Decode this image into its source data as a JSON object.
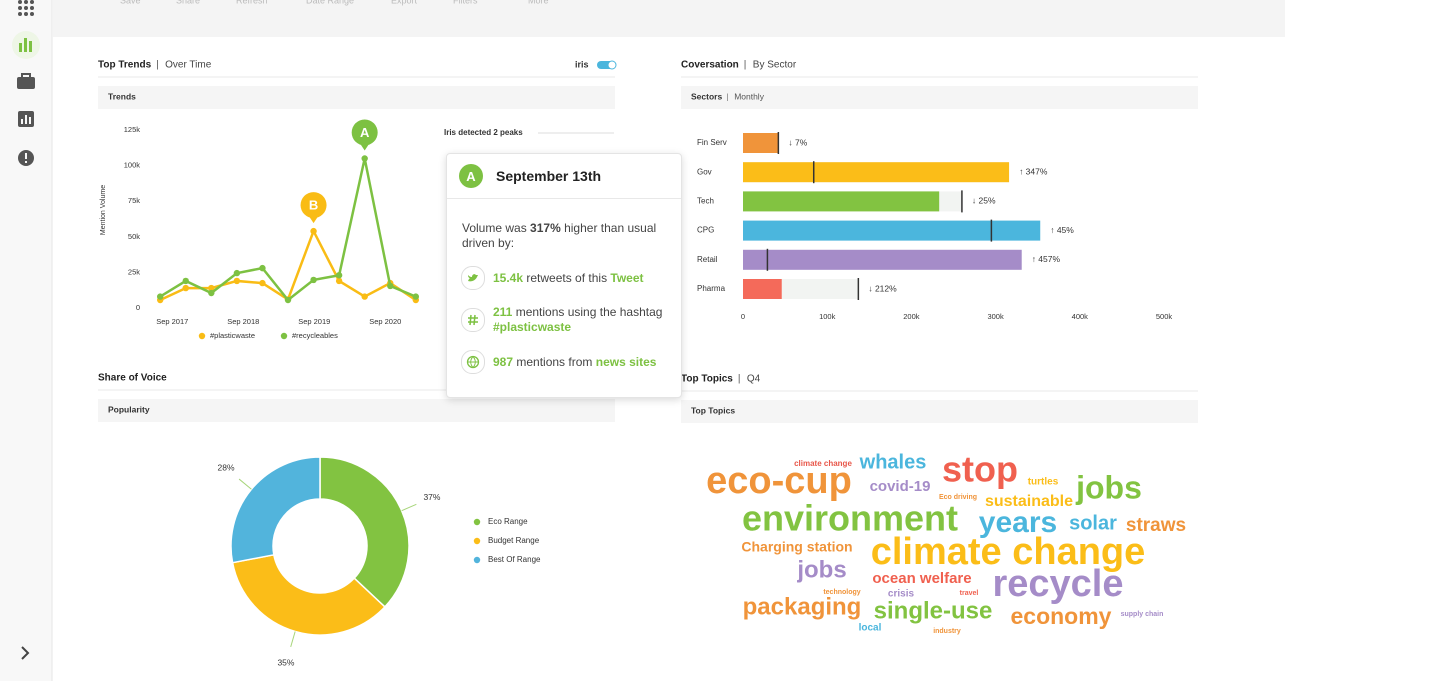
{
  "toolbar": {
    "items": [
      "Save",
      "Share",
      "Refresh",
      "Date Range",
      "Export",
      "Filters",
      "More"
    ]
  },
  "chart_data": [
    {
      "type": "line",
      "title": "Top Trends",
      "subtitle": "Over Time",
      "panel_header": "Trends",
      "toggle_label": "iris",
      "y_label": "Mention Volume",
      "x": [
        2017.5,
        2017.86,
        2018.22,
        2018.58,
        2018.94,
        2019.3,
        2019.66,
        2020.02,
        2020.38,
        2020.74,
        2021.1
      ],
      "xlim": [
        2017.3,
        2021.3
      ],
      "xticks": [
        {
          "value": 2017.67,
          "label": "Sep 2017"
        },
        {
          "value": 2018.67,
          "label": "Sep 2018"
        },
        {
          "value": 2019.67,
          "label": "Sep 2019"
        },
        {
          "value": 2020.67,
          "label": "Sep 2020"
        }
      ],
      "ylim": [
        0,
        125000
      ],
      "yticks": [
        0,
        {
          "value": 25000,
          "label": "25k"
        },
        {
          "value": 50000,
          "label": "50k"
        },
        {
          "value": 75000,
          "label": "75k"
        },
        {
          "value": 100000,
          "label": "100k"
        },
        {
          "value": 125000,
          "label": "125k"
        }
      ],
      "series": [
        {
          "name": "#plasticwaste",
          "color": "#f9bc15",
          "values": [
            5600,
            14000,
            14000,
            19000,
            17500,
            6000,
            54000,
            19000,
            8000,
            17500,
            5600
          ]
        },
        {
          "name": "#recycleables",
          "color": "#7dc142",
          "values": [
            8000,
            19000,
            10500,
            24500,
            28000,
            5600,
            19700,
            23000,
            105000,
            15500,
            8000
          ]
        }
      ],
      "annotations": [
        {
          "text": "A",
          "x": 2020.38,
          "y": 105000,
          "color": "#7dc142"
        },
        {
          "text": "B",
          "x": 2019.66,
          "y": 54000,
          "color": "#f9bc15"
        }
      ]
    },
    {
      "type": "bar",
      "orientation": "horizontal",
      "title": "Coversation",
      "subtitle": "By Sector",
      "panel_header": "Sectors",
      "panel_subheader": "Monthly",
      "categories": [
        "Fin Serv",
        "Gov",
        "Tech",
        "CPG",
        "Retail",
        "Pharma"
      ],
      "values": [
        42000,
        316000,
        233000,
        353000,
        331000,
        46000
      ],
      "benchmark": [
        42000,
        84000,
        260000,
        295000,
        29000,
        137000
      ],
      "change_labels": [
        "↓ 7%",
        "↑ 347%",
        "↓ 25%",
        "↑ 45%",
        "↑ 457%",
        "↓ 212%"
      ],
      "colors": [
        "#f0943a",
        "#fbbd18",
        "#82c341",
        "#4bb6dd",
        "#a58cc8",
        "#f46a5a"
      ],
      "track_color": "#f2f4f2",
      "xlim": [
        0,
        500000
      ],
      "xticks": [
        0,
        {
          "value": 100000,
          "label": "100k"
        },
        {
          "value": 200000,
          "label": "200k"
        },
        {
          "value": 300000,
          "label": "300k"
        },
        {
          "value": 400000,
          "label": "400k"
        },
        {
          "value": 500000,
          "label": "500k"
        }
      ]
    },
    {
      "type": "pie",
      "title": "Share of Voice",
      "panel_header": "Popularity",
      "categories": [
        "Eco Range",
        "Budget Range",
        "Best Of Range"
      ],
      "values": [
        37,
        35,
        28
      ],
      "value_labels": [
        "37%",
        "35%",
        "28%"
      ],
      "colors": [
        "#82c341",
        "#fbbd18",
        "#52b4dc"
      ]
    }
  ],
  "popup": {
    "heading": "Iris detected 2 peaks",
    "badge": "A",
    "date": "September 13th",
    "summary": [
      "Volume was ",
      "317%",
      " higher than usual driven by:"
    ],
    "items": [
      [
        "15.4k",
        " retweets of this ",
        "Tweet"
      ],
      [
        "211",
        " mentions using the hashtag ",
        "#plasticwaste"
      ],
      [
        "987",
        " mentions from ",
        "news sites"
      ]
    ]
  },
  "word_cloud": {
    "title": "Top Topics",
    "subtitle": "Q4",
    "panel_header": "Top Topics",
    "words": [
      {
        "text": "climate change",
        "color": "#e8574a"
      },
      {
        "text": "whales",
        "color": "#4bb6dd"
      },
      {
        "text": "stop",
        "color": "#f0604f"
      },
      {
        "text": "turtles",
        "color": "#fbbd18"
      },
      {
        "text": "eco-cup",
        "color": "#f0943a"
      },
      {
        "text": "covid-19",
        "color": "#a58cc8"
      },
      {
        "text": "Eco driving",
        "color": "#f0943a"
      },
      {
        "text": "jobs",
        "color": "#82c341"
      },
      {
        "text": "sustainable",
        "color": "#fbbd18"
      },
      {
        "text": "environment",
        "color": "#82c341"
      },
      {
        "text": "years",
        "color": "#4bb6dd"
      },
      {
        "text": "solar",
        "color": "#4bb6dd"
      },
      {
        "text": "straws",
        "color": "#f0943a"
      },
      {
        "text": "Charging station",
        "color": "#f0943a"
      },
      {
        "text": "climate change",
        "color": "#fbbd18"
      },
      {
        "text": "jobs",
        "color": "#a58cc8"
      },
      {
        "text": "ocean welfare",
        "color": "#f0604f"
      },
      {
        "text": "recycle",
        "color": "#a58cc8"
      },
      {
        "text": "technology",
        "color": "#f0943a"
      },
      {
        "text": "crisis",
        "color": "#a58cc8"
      },
      {
        "text": "travel",
        "color": "#f0604f"
      },
      {
        "text": "packaging",
        "color": "#f0943a"
      },
      {
        "text": "single-use",
        "color": "#82c341"
      },
      {
        "text": "economy",
        "color": "#f0943a"
      },
      {
        "text": "supply chain",
        "color": "#a58cc8"
      },
      {
        "text": "local",
        "color": "#4bb6dd"
      },
      {
        "text": "industry",
        "color": "#f0943a"
      }
    ]
  }
}
